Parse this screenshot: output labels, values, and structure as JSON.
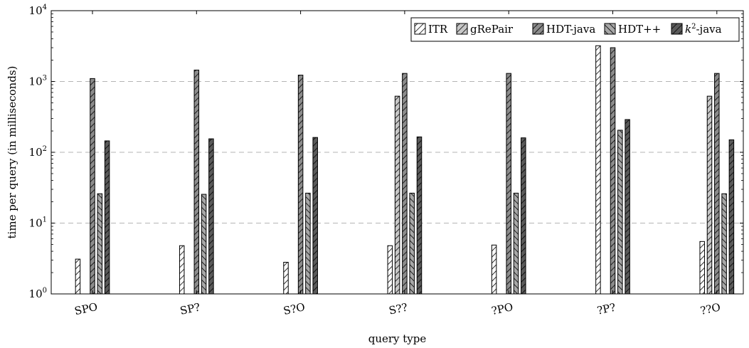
{
  "chart_data": {
    "type": "bar",
    "scale": "log",
    "ylim": [
      1,
      10000
    ],
    "xlabel": "query type",
    "ylabel": "time per query (in milliseconds)",
    "categories": [
      "SPO",
      "SP?",
      "S?O",
      "S??",
      "?PO",
      "?P?",
      "??O"
    ],
    "y_ticks": [
      {
        "base": "10",
        "exp": "0",
        "value": 1
      },
      {
        "base": "10",
        "exp": "1",
        "value": 10
      },
      {
        "base": "10",
        "exp": "2",
        "value": 100
      },
      {
        "base": "10",
        "exp": "3",
        "value": 1000
      },
      {
        "base": "10",
        "exp": "4",
        "value": 10000
      }
    ],
    "grid": "horizontal dashed",
    "legend_position": "top-right",
    "series": [
      {
        "name": "ITR",
        "legend_prefix": "",
        "legend_sup": "",
        "legend_suffix": "",
        "color": "#ffffff",
        "pattern": "ne",
        "values": [
          3.1,
          4.8,
          2.8,
          4.8,
          4.9,
          3200,
          5.5
        ]
      },
      {
        "name": "gRePair",
        "legend_prefix": "",
        "legend_sup": "",
        "legend_suffix": "",
        "color": "#c8c8c8",
        "pattern": "ne",
        "values": [
          null,
          null,
          null,
          620,
          null,
          null,
          620
        ]
      },
      {
        "name": "HDT-java",
        "legend_prefix": "",
        "legend_sup": "",
        "legend_suffix": "",
        "color": "#8c8c8c",
        "pattern": "ne",
        "values": [
          1100,
          1450,
          1230,
          1300,
          1300,
          3000,
          1300
        ]
      },
      {
        "name": "HDT++",
        "legend_prefix": "",
        "legend_sup": "",
        "legend_suffix": "",
        "color": "#a8a8a8",
        "pattern": "nw",
        "values": [
          26,
          25.5,
          26.5,
          26.5,
          26.5,
          205,
          26
        ]
      },
      {
        "name": "k2-java",
        "legend_prefix": "k",
        "legend_sup": "2",
        "legend_suffix": "-java",
        "color": "#5a5a5a",
        "pattern": "ne",
        "values": [
          145,
          155,
          162,
          165,
          160,
          290,
          150
        ]
      }
    ]
  }
}
